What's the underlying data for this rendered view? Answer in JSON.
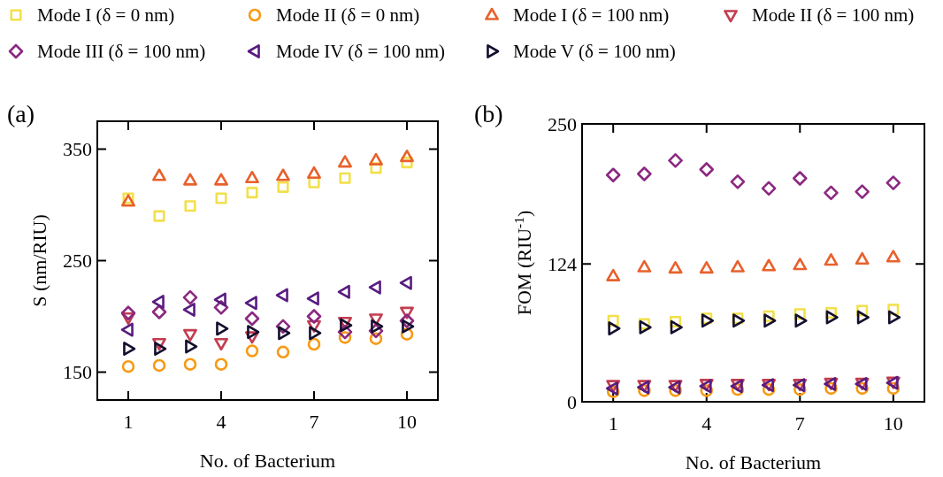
{
  "chart_data": [
    {
      "type": "scatter",
      "title": "(a)",
      "xlabel": "No. of Bacterium",
      "ylabel": "S (nm/RIU)",
      "x": [
        1,
        2,
        3,
        4,
        5,
        6,
        7,
        8,
        9,
        10
      ],
      "xlim": [
        0,
        11
      ],
      "xticks": [
        1,
        4,
        7,
        10
      ],
      "ylim": [
        125,
        375
      ],
      "yticks": [
        150,
        250,
        350
      ],
      "grid": false,
      "legend": "top",
      "series": [
        {
          "name": "Mode I (δ = 0 nm)",
          "color": "#f2e04a",
          "marker": "square",
          "values": [
            306,
            290,
            299,
            306,
            311,
            316,
            320,
            324,
            333,
            338
          ]
        },
        {
          "name": "Mode II (δ = 0 nm)",
          "color": "#f79a13",
          "marker": "circle",
          "values": [
            155,
            156,
            157,
            157,
            169,
            168,
            175,
            181,
            180,
            184
          ]
        },
        {
          "name": "Mode I (δ = 100 nm)",
          "color": "#e8612c",
          "marker": "triangle",
          "values": [
            303,
            326,
            322,
            322,
            324,
            326,
            328,
            338,
            340,
            343
          ]
        },
        {
          "name": "Mode II (δ = 100 nm)",
          "color": "#c23d50",
          "marker": "triangle-down",
          "values": [
            199,
            176,
            184,
            176,
            182,
            null,
            192,
            195,
            198,
            204
          ]
        },
        {
          "name": "Mode III (δ = 100 nm)",
          "color": "#8b2981",
          "marker": "diamond",
          "values": [
            203,
            204,
            217,
            208,
            198,
            191,
            200,
            186,
            187,
            196
          ]
        },
        {
          "name": "Mode IV (δ = 100 nm)",
          "color": "#581c7f",
          "marker": "triangle-left",
          "values": [
            188,
            213,
            206,
            215,
            212,
            219,
            216,
            222,
            226,
            230
          ]
        },
        {
          "name": "Mode V (δ = 100 nm)",
          "color": "#140f2e",
          "marker": "triangle-right",
          "values": [
            171,
            171,
            173,
            189,
            186,
            185,
            185,
            192,
            191,
            191
          ]
        }
      ]
    },
    {
      "type": "scatter",
      "title": "(b)",
      "xlabel": "No. of Bacterium",
      "ylabel": "FOM (RIU$^{-1}$)",
      "x": [
        1,
        2,
        3,
        4,
        5,
        6,
        7,
        8,
        9,
        10
      ],
      "xlim": [
        0,
        11
      ],
      "xticks": [
        1,
        4,
        7,
        10
      ],
      "ylim": [
        0,
        250
      ],
      "yticks": [
        0,
        124,
        250
      ],
      "grid": false,
      "series": [
        {
          "color": "#f2e04a",
          "marker": "square",
          "values": [
            73,
            70,
            72,
            75,
            75,
            77,
            79,
            80,
            82,
            83
          ]
        },
        {
          "color": "#f79a13",
          "marker": "circle",
          "values": [
            9,
            10,
            10,
            10,
            11,
            11,
            11,
            12,
            12,
            12
          ]
        },
        {
          "color": "#e8612c",
          "marker": "triangle",
          "values": [
            113,
            121,
            120,
            120,
            121,
            122,
            123,
            127,
            128,
            130
          ]
        },
        {
          "color": "#c23d50",
          "marker": "triangle-down",
          "values": [
            15,
            15,
            15,
            16,
            16,
            16,
            16,
            17,
            17,
            18
          ]
        },
        {
          "color": "#8b2981",
          "marker": "diamond",
          "values": [
            204,
            205,
            217,
            209,
            198,
            192,
            201,
            188,
            189,
            197
          ]
        },
        {
          "color": "#581c7f",
          "marker": "triangle-left",
          "values": [
            12,
            13,
            13,
            14,
            14,
            15,
            15,
            16,
            16,
            17
          ]
        },
        {
          "color": "#140f2e",
          "marker": "triangle-right",
          "values": [
            66,
            67,
            67,
            73,
            73,
            73,
            73,
            76,
            76,
            76
          ]
        }
      ]
    }
  ]
}
